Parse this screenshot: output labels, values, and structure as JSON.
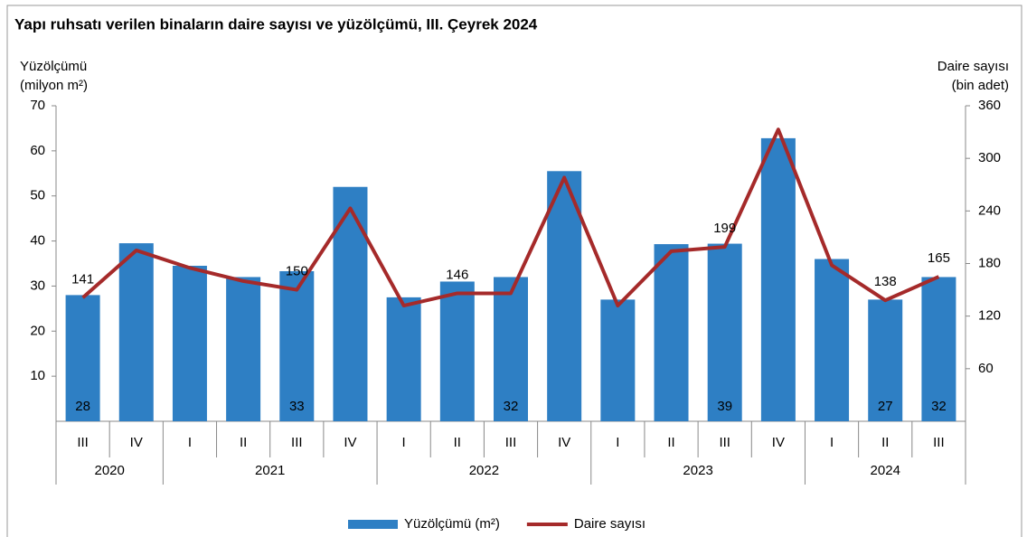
{
  "chart_data": {
    "type": "bar-line",
    "title": "Yapı ruhsatı verilen binaların daire sayısı ve yüzölçümü, III. Çeyrek 2024",
    "y_label": [
      "Yüzölçümü",
      "(milyon m²)"
    ],
    "y2_label": [
      "Daire sayısı",
      "(bin adet)"
    ],
    "groups": [
      {
        "label": "2020",
        "categories": [
          "III",
          "IV"
        ]
      },
      {
        "label": "2021",
        "categories": [
          "I",
          "II",
          "III",
          "IV"
        ]
      },
      {
        "label": "2022",
        "categories": [
          "I",
          "II",
          "III",
          "IV"
        ]
      },
      {
        "label": "2023",
        "categories": [
          "I",
          "II",
          "III",
          "IV"
        ]
      },
      {
        "label": "2024",
        "categories": [
          "I",
          "II",
          "III"
        ]
      }
    ],
    "series": [
      {
        "name": "Yüzölçümü (m²)",
        "type": "bar",
        "color": "#2e7fc4",
        "values": [
          28,
          39.5,
          34.5,
          32,
          33.3,
          52,
          27.5,
          31,
          32,
          55.5,
          27,
          39.3,
          39.4,
          62.8,
          36,
          27,
          32
        ],
        "value_labels": [
          "28",
          null,
          null,
          null,
          "33",
          null,
          null,
          null,
          "32",
          null,
          null,
          null,
          "39",
          null,
          null,
          "27",
          "32"
        ]
      },
      {
        "name": "Daire sayısı",
        "type": "line",
        "axis": "y2",
        "color": "#a52a2a",
        "values": [
          141,
          195,
          175,
          160,
          150,
          243,
          132,
          146,
          146,
          278,
          132,
          194,
          199,
          333,
          178,
          138,
          165
        ],
        "value_labels": [
          "141",
          null,
          null,
          null,
          "150",
          null,
          null,
          "146",
          null,
          null,
          null,
          null,
          "199",
          null,
          null,
          "138",
          "165"
        ]
      }
    ],
    "ylim": [
      0,
      70
    ],
    "yticks": [
      10,
      20,
      30,
      40,
      50,
      60,
      70
    ],
    "y2lim": [
      0,
      360
    ],
    "y2ticks": [
      60,
      120,
      180,
      240,
      300,
      360
    ],
    "legend": "bottom"
  }
}
